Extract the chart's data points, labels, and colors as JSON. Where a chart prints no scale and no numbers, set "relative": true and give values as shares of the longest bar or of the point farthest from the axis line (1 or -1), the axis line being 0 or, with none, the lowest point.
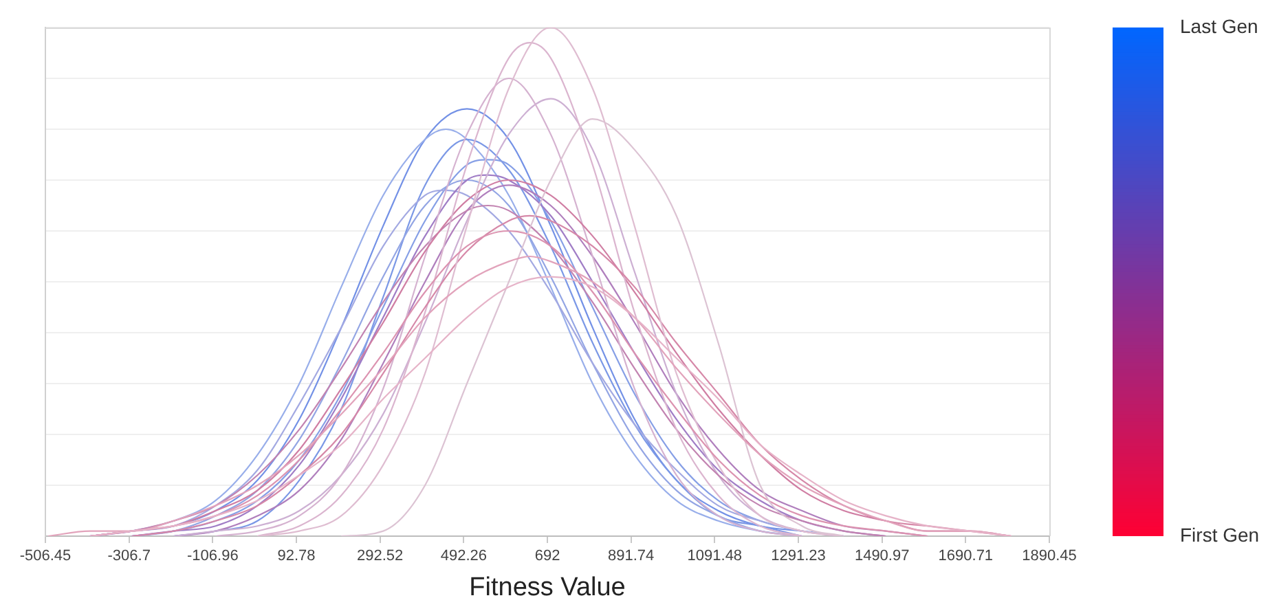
{
  "chart_data": {
    "type": "line",
    "xlabel": "Fitness Value",
    "relative": true,
    "grid": "y",
    "tick_labels": "x",
    "xlim": [
      -506.45,
      1890.45
    ],
    "xticks": [
      -506.45,
      -306.7,
      -106.96,
      92.78,
      292.52,
      492.26,
      692,
      891.74,
      1091.48,
      1291.23,
      1490.97,
      1690.71,
      1890.45
    ],
    "clim": [
      0,
      1
    ],
    "cticks": [
      {
        "value": 0,
        "label": "First Gen"
      },
      {
        "value": 1,
        "label": "Last Gen"
      }
    ],
    "series": [
      {
        "color": "#e6b3c8",
        "x": [
          -400,
          -300,
          -200,
          -100,
          0,
          100,
          200,
          300,
          400,
          500,
          600,
          700,
          800,
          900,
          1000,
          1100,
          1200,
          1300,
          1400,
          1500,
          1600,
          1700,
          1800
        ],
        "values": [
          0,
          0.01,
          0.02,
          0.04,
          0.07,
          0.12,
          0.18,
          0.27,
          0.35,
          0.43,
          0.49,
          0.51,
          0.49,
          0.43,
          0.35,
          0.27,
          0.18,
          0.12,
          0.07,
          0.04,
          0.02,
          0.01,
          0
        ]
      },
      {
        "color": "#e2a3bb",
        "x": [
          -500,
          -400,
          -300,
          -200,
          -100,
          0,
          100,
          200,
          300,
          400,
          500,
          600,
          650,
          700,
          800,
          900,
          1000,
          1100,
          1200,
          1300,
          1400,
          1500,
          1600,
          1700,
          1800
        ],
        "values": [
          0,
          0.01,
          0.01,
          0.03,
          0.06,
          0.1,
          0.16,
          0.24,
          0.33,
          0.43,
          0.5,
          0.54,
          0.55,
          0.54,
          0.5,
          0.43,
          0.33,
          0.24,
          0.16,
          0.1,
          0.06,
          0.03,
          0.01,
          0.01,
          0
        ]
      },
      {
        "color": "#dcc3d3",
        "x": [
          200,
          300,
          400,
          500,
          600,
          700,
          800,
          900,
          1000,
          1100,
          1200,
          1300,
          1400
        ],
        "values": [
          0,
          0.01,
          0.1,
          0.3,
          0.5,
          0.7,
          0.82,
          0.76,
          0.63,
          0.38,
          0.1,
          0.02,
          0
        ]
      },
      {
        "color": "#dc93b0",
        "x": [
          -400,
          -300,
          -200,
          -100,
          0,
          100,
          200,
          300,
          400,
          500,
          600,
          700,
          800,
          900,
          1000,
          1100,
          1200,
          1300,
          1400,
          1500,
          1600
        ],
        "values": [
          0,
          0.01,
          0.02,
          0.04,
          0.08,
          0.15,
          0.25,
          0.36,
          0.48,
          0.57,
          0.6,
          0.57,
          0.48,
          0.36,
          0.25,
          0.15,
          0.08,
          0.04,
          0.02,
          0.01,
          0
        ]
      },
      {
        "color": "#dfbdd1",
        "x": [
          0,
          100,
          200,
          300,
          400,
          500,
          600,
          700,
          800,
          900,
          1000,
          1100,
          1200,
          1300,
          1400
        ],
        "values": [
          0,
          0.01,
          0.04,
          0.14,
          0.32,
          0.61,
          0.88,
          1,
          0.88,
          0.61,
          0.32,
          0.14,
          0.04,
          0.01,
          0
        ]
      },
      {
        "color": "#d688a8",
        "x": [
          -300,
          -200,
          -100,
          0,
          100,
          200,
          300,
          400,
          500,
          600,
          650,
          700,
          800,
          900,
          1000,
          1100,
          1200,
          1300,
          1400,
          1500,
          1600,
          1700,
          1800
        ],
        "values": [
          0,
          0.01,
          0.03,
          0.06,
          0.12,
          0.2,
          0.32,
          0.45,
          0.56,
          0.62,
          0.63,
          0.62,
          0.57,
          0.49,
          0.38,
          0.28,
          0.18,
          0.11,
          0.06,
          0.03,
          0.02,
          0.01,
          0
        ]
      },
      {
        "color": "#dbb5cf",
        "x": [
          0,
          100,
          200,
          300,
          400,
          500,
          600,
          650,
          700,
          800,
          900,
          1000,
          1100,
          1200,
          1300
        ],
        "values": [
          0,
          0.02,
          0.08,
          0.21,
          0.44,
          0.73,
          0.94,
          0.97,
          0.94,
          0.73,
          0.44,
          0.21,
          0.08,
          0.02,
          0
        ]
      },
      {
        "color": "#d07ea3",
        "x": [
          -400,
          -300,
          -200,
          -100,
          0,
          100,
          200,
          300,
          400,
          500,
          600,
          700,
          800,
          900,
          1000,
          1100,
          1200,
          1300,
          1400,
          1500,
          1600,
          1700,
          1800
        ],
        "values": [
          0,
          0.01,
          0.02,
          0.05,
          0.09,
          0.17,
          0.29,
          0.42,
          0.56,
          0.66,
          0.7,
          0.67,
          0.59,
          0.48,
          0.36,
          0.25,
          0.16,
          0.09,
          0.05,
          0.03,
          0.01,
          0.01,
          0
        ]
      },
      {
        "color": "#d5b2d0",
        "x": [
          -100,
          0,
          100,
          200,
          300,
          400,
          500,
          600,
          700,
          800,
          900,
          1000,
          1100,
          1200,
          1300
        ],
        "values": [
          0,
          0.01,
          0.04,
          0.12,
          0.29,
          0.55,
          0.79,
          0.9,
          0.79,
          0.55,
          0.29,
          0.12,
          0.04,
          0.01,
          0
        ]
      },
      {
        "color": "#c283b1",
        "x": [
          -400,
          -300,
          -200,
          -100,
          0,
          100,
          200,
          300,
          400,
          500,
          550,
          600,
          700,
          800,
          900,
          1000,
          1100,
          1200,
          1300,
          1400,
          1500
        ],
        "values": [
          0,
          0.01,
          0.03,
          0.06,
          0.12,
          0.21,
          0.33,
          0.46,
          0.57,
          0.64,
          0.65,
          0.64,
          0.57,
          0.46,
          0.33,
          0.21,
          0.12,
          0.06,
          0.03,
          0.01,
          0
        ]
      },
      {
        "color": "#cdb0d3",
        "x": [
          -200,
          -100,
          0,
          100,
          200,
          300,
          400,
          500,
          600,
          700,
          800,
          900,
          1000,
          1100,
          1200,
          1300,
          1400
        ],
        "values": [
          0,
          0.01,
          0.02,
          0.05,
          0.12,
          0.24,
          0.42,
          0.62,
          0.79,
          0.86,
          0.76,
          0.52,
          0.28,
          0.12,
          0.04,
          0.01,
          0
        ]
      },
      {
        "color": "#b07fbd",
        "x": [
          -200,
          -100,
          0,
          100,
          200,
          300,
          400,
          500,
          600,
          700,
          800,
          900,
          1000,
          1100,
          1200,
          1300,
          1400,
          1500,
          1600
        ],
        "values": [
          0,
          0.01,
          0.04,
          0.09,
          0.19,
          0.34,
          0.5,
          0.64,
          0.69,
          0.65,
          0.55,
          0.42,
          0.28,
          0.17,
          0.09,
          0.05,
          0.02,
          0.01,
          0
        ]
      },
      {
        "color": "#a07dc6",
        "x": [
          -300,
          -200,
          -100,
          0,
          100,
          200,
          300,
          400,
          500,
          550,
          600,
          700,
          800,
          900,
          1000,
          1100,
          1200,
          1300,
          1400,
          1500
        ],
        "values": [
          0,
          0.01,
          0.02,
          0.06,
          0.14,
          0.27,
          0.43,
          0.59,
          0.7,
          0.71,
          0.7,
          0.63,
          0.5,
          0.36,
          0.23,
          0.13,
          0.07,
          0.03,
          0.01,
          0
        ]
      },
      {
        "color": "#a3a9e2",
        "x": [
          -400,
          -300,
          -200,
          -100,
          0,
          100,
          200,
          300,
          400,
          450,
          500,
          600,
          700,
          800,
          900,
          1000,
          1100,
          1200,
          1300,
          1400
        ],
        "values": [
          0,
          0.01,
          0.02,
          0.06,
          0.13,
          0.26,
          0.41,
          0.57,
          0.67,
          0.68,
          0.67,
          0.6,
          0.48,
          0.34,
          0.22,
          0.13,
          0.06,
          0.03,
          0.01,
          0
        ]
      },
      {
        "color": "#93a5e4",
        "x": [
          -300,
          -200,
          -100,
          0,
          100,
          200,
          300,
          400,
          500,
          600,
          700,
          800,
          900,
          1000,
          1100,
          1200,
          1300
        ],
        "values": [
          0,
          0.01,
          0.04,
          0.09,
          0.19,
          0.34,
          0.51,
          0.65,
          0.7,
          0.65,
          0.51,
          0.34,
          0.19,
          0.09,
          0.04,
          0.01,
          0
        ]
      },
      {
        "color": "#869fe6",
        "x": [
          -300,
          -200,
          -100,
          0,
          100,
          200,
          300,
          400,
          500,
          550,
          600,
          700,
          800,
          900,
          1000,
          1100,
          1200,
          1300,
          1400
        ],
        "values": [
          0,
          0.01,
          0.03,
          0.07,
          0.15,
          0.28,
          0.45,
          0.62,
          0.73,
          0.74,
          0.73,
          0.62,
          0.45,
          0.28,
          0.15,
          0.07,
          0.03,
          0.01,
          0
        ]
      },
      {
        "color": "#7b98e6",
        "x": [
          -200,
          -100,
          0,
          100,
          200,
          300,
          400,
          500,
          600,
          700,
          800,
          900,
          1000,
          1100,
          1200,
          1300
        ],
        "values": [
          0,
          0.01,
          0.03,
          0.11,
          0.25,
          0.47,
          0.69,
          0.78,
          0.72,
          0.57,
          0.38,
          0.22,
          0.11,
          0.04,
          0.02,
          0
        ]
      },
      {
        "color": "#98aeea",
        "x": [
          -400,
          -300,
          -200,
          -100,
          0,
          100,
          200,
          300,
          400,
          450,
          500,
          600,
          700,
          800,
          900,
          1000,
          1100,
          1200,
          1300
        ],
        "values": [
          0,
          0.01,
          0.03,
          0.07,
          0.16,
          0.3,
          0.49,
          0.67,
          0.78,
          0.8,
          0.78,
          0.67,
          0.49,
          0.3,
          0.16,
          0.07,
          0.03,
          0.01,
          0
        ]
      },
      {
        "color": "#7391e6",
        "x": [
          -400,
          -300,
          -200,
          -100,
          0,
          100,
          200,
          300,
          400,
          500,
          600,
          700,
          800,
          900,
          1000,
          1100,
          1200,
          1300,
          1400
        ],
        "values": [
          0,
          0.01,
          0.02,
          0.05,
          0.11,
          0.23,
          0.41,
          0.61,
          0.78,
          0.84,
          0.78,
          0.61,
          0.41,
          0.23,
          0.11,
          0.05,
          0.02,
          0.01,
          0
        ]
      }
    ]
  }
}
